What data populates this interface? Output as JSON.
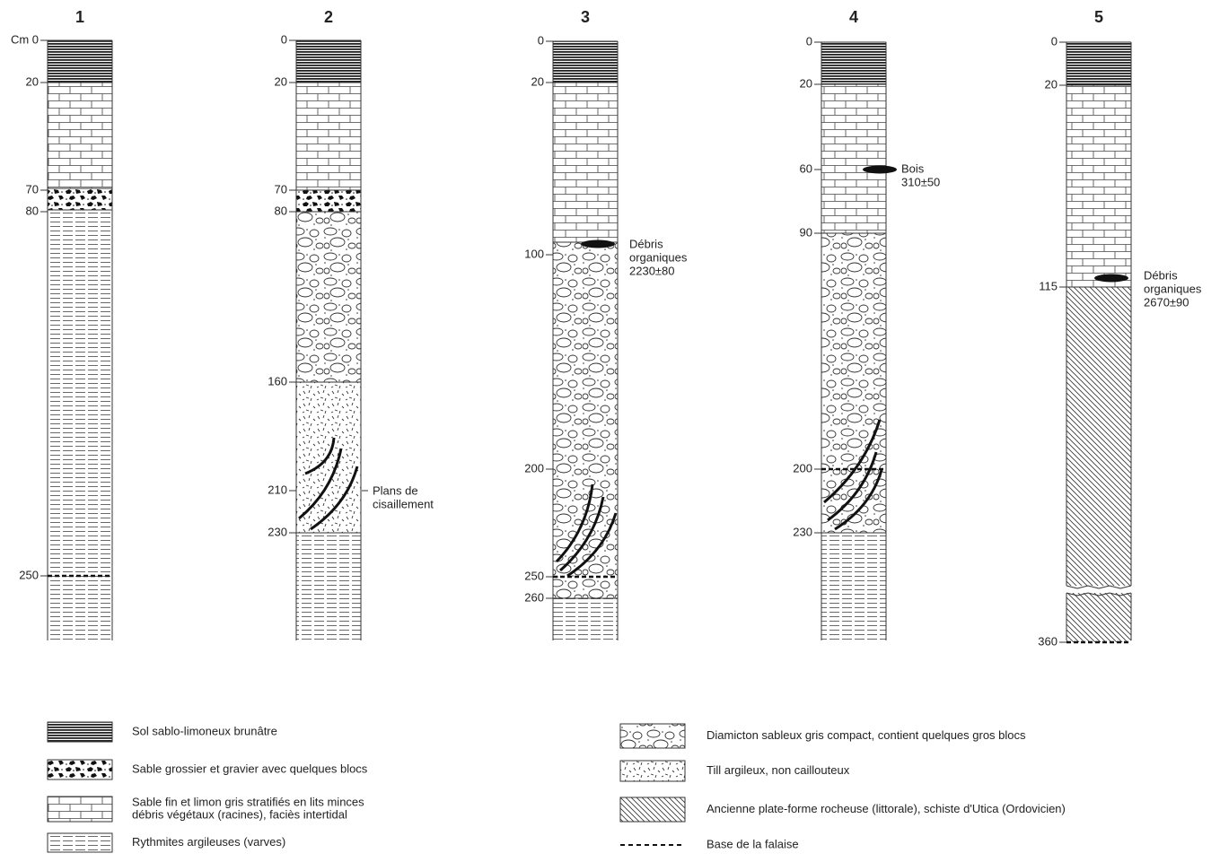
{
  "columns": [
    {
      "label": "1",
      "depth_labels": [
        "Cm 0",
        "20",
        "70",
        "80",
        "250"
      ]
    },
    {
      "label": "2",
      "depth_labels": [
        "0",
        "20",
        "70",
        "80",
        "160",
        "210",
        "230"
      ]
    },
    {
      "label": "3",
      "depth_labels": [
        "0",
        "20",
        "100",
        "200",
        "250",
        "260"
      ]
    },
    {
      "label": "4",
      "depth_labels": [
        "0",
        "20",
        "60",
        "90",
        "200",
        "230"
      ]
    },
    {
      "label": "5",
      "depth_labels": [
        "0",
        "20",
        "115",
        "360"
      ]
    }
  ],
  "annotations": [
    {
      "lines": [
        "Plans de",
        "cisaillement"
      ]
    },
    {
      "lines": [
        "Débris",
        "organiques",
        "2230±80"
      ]
    },
    {
      "lines": [
        "Bois",
        "310±50"
      ]
    },
    {
      "lines": [
        "Débris",
        "organiques",
        "2670±90"
      ]
    }
  ],
  "legend": [
    {
      "lines": [
        "Sol sablo-limoneux brunâtre"
      ]
    },
    {
      "lines": [
        "Sable grossier et gravier avec quelques blocs"
      ]
    },
    {
      "lines": [
        "Sable fin et limon gris stratifiés en lits minces",
        "débris végétaux (racines), faciès intertidal"
      ]
    },
    {
      "lines": [
        "Rythmites argileuses (varves)"
      ]
    },
    {
      "lines": [
        "Diamicton sableux gris compact, contient quelques gros blocs"
      ]
    },
    {
      "lines": [
        "Till argileux, non caillouteux"
      ]
    },
    {
      "lines": [
        "Ancienne plate-forme rocheuse (littorale), schiste d'Utica (Ordovicien)"
      ]
    },
    {
      "lines": [
        "Base de la falaise"
      ]
    }
  ]
}
